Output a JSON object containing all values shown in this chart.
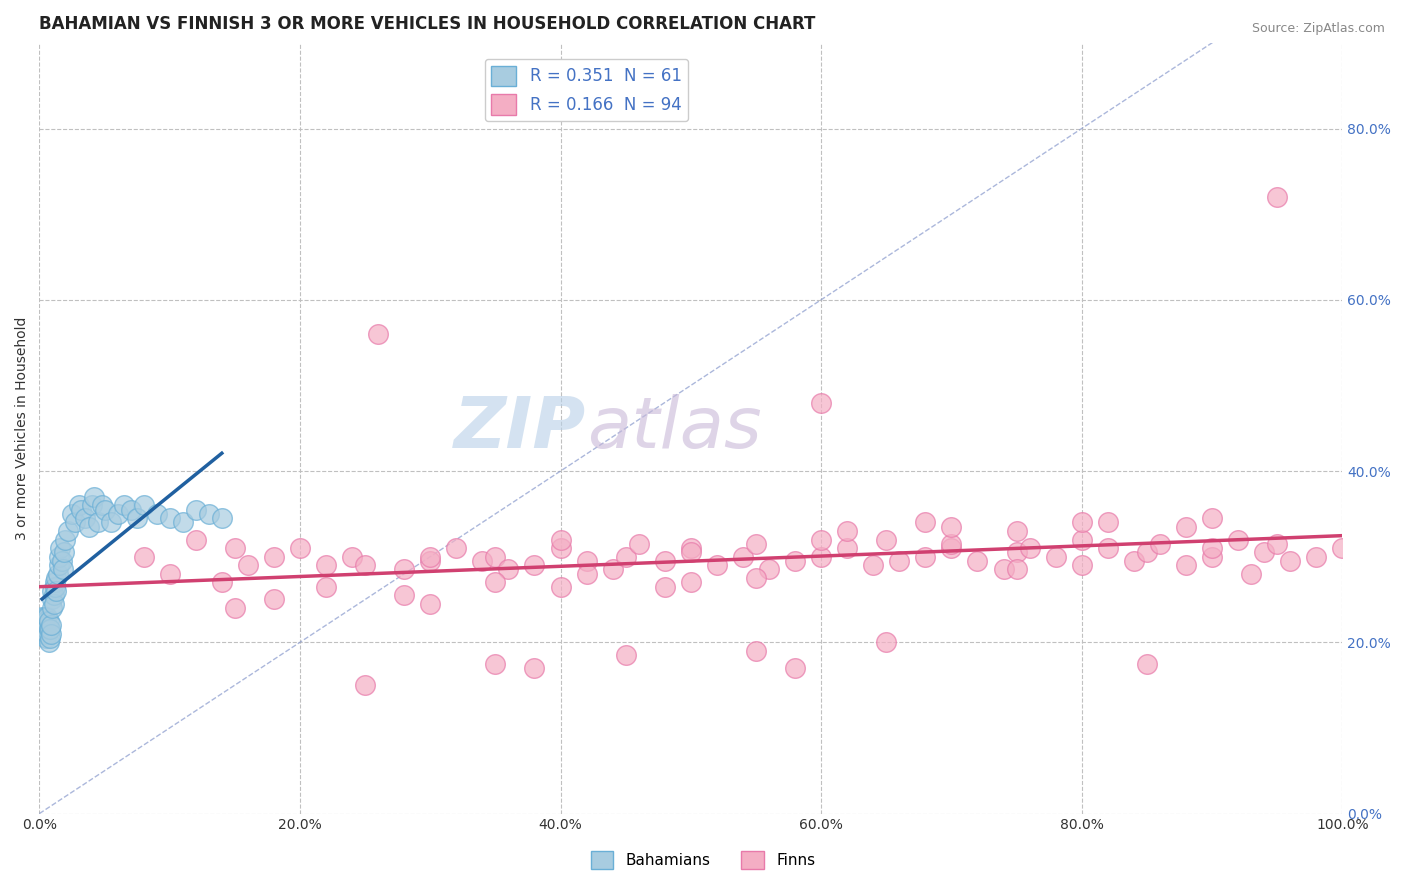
{
  "title": "BAHAMIAN VS FINNISH 3 OR MORE VEHICLES IN HOUSEHOLD CORRELATION CHART",
  "source": "Source: ZipAtlas.com",
  "ylabel": "3 or more Vehicles in Household",
  "xlabel": "",
  "xlim": [
    0.0,
    1.0
  ],
  "ylim": [
    0.0,
    0.9
  ],
  "x_ticks": [
    0.0,
    0.2,
    0.4,
    0.6,
    0.8,
    1.0
  ],
  "x_tick_labels": [
    "0.0%",
    "20.0%",
    "40.0%",
    "60.0%",
    "80.0%",
    "100.0%"
  ],
  "y_ticks": [
    0.0,
    0.2,
    0.4,
    0.6,
    0.8
  ],
  "y_tick_labels": [
    "0.0%",
    "20.0%",
    "40.0%",
    "60.0%",
    "80.0%"
  ],
  "bahamian_color": "#a8cce0",
  "bahamian_edge_color": "#6aafd6",
  "finn_color": "#f4aec4",
  "finn_edge_color": "#e87aaa",
  "R_bahamian": 0.351,
  "N_bahamian": 61,
  "R_finn": 0.166,
  "N_finn": 94,
  "trend_bahamian_color": "#2060a0",
  "trend_finn_color": "#d04070",
  "legend_text_color": "#4472c4",
  "watermark_zip_color": "#b0c8e8",
  "watermark_atlas_color": "#c8b8d8",
  "background_color": "#ffffff",
  "grid_color": "#c0c0c0",
  "title_fontsize": 12,
  "label_fontsize": 10,
  "legend_fontsize": 12,
  "bahamian_x": [
    0.002,
    0.002,
    0.003,
    0.003,
    0.004,
    0.004,
    0.004,
    0.005,
    0.005,
    0.005,
    0.006,
    0.006,
    0.006,
    0.007,
    0.007,
    0.007,
    0.008,
    0.008,
    0.009,
    0.009,
    0.01,
    0.01,
    0.01,
    0.011,
    0.011,
    0.012,
    0.012,
    0.013,
    0.013,
    0.014,
    0.015,
    0.015,
    0.016,
    0.017,
    0.018,
    0.019,
    0.02,
    0.022,
    0.025,
    0.027,
    0.03,
    0.032,
    0.035,
    0.038,
    0.04,
    0.042,
    0.045,
    0.048,
    0.05,
    0.055,
    0.06,
    0.065,
    0.07,
    0.075,
    0.08,
    0.09,
    0.1,
    0.11,
    0.12,
    0.13,
    0.14
  ],
  "bahamian_y": [
    0.22,
    0.23,
    0.21,
    0.225,
    0.215,
    0.22,
    0.23,
    0.205,
    0.215,
    0.225,
    0.21,
    0.22,
    0.23,
    0.2,
    0.215,
    0.225,
    0.205,
    0.215,
    0.21,
    0.22,
    0.25,
    0.26,
    0.24,
    0.255,
    0.245,
    0.27,
    0.265,
    0.275,
    0.26,
    0.28,
    0.29,
    0.3,
    0.31,
    0.295,
    0.285,
    0.305,
    0.32,
    0.33,
    0.35,
    0.34,
    0.36,
    0.355,
    0.345,
    0.335,
    0.36,
    0.37,
    0.34,
    0.36,
    0.355,
    0.34,
    0.35,
    0.36,
    0.355,
    0.345,
    0.36,
    0.35,
    0.345,
    0.34,
    0.355,
    0.35,
    0.345
  ],
  "finn_x": [
    0.08,
    0.1,
    0.12,
    0.14,
    0.15,
    0.16,
    0.18,
    0.2,
    0.22,
    0.24,
    0.25,
    0.26,
    0.28,
    0.3,
    0.3,
    0.32,
    0.34,
    0.35,
    0.36,
    0.38,
    0.4,
    0.4,
    0.42,
    0.44,
    0.45,
    0.46,
    0.48,
    0.5,
    0.5,
    0.52,
    0.54,
    0.55,
    0.56,
    0.58,
    0.6,
    0.6,
    0.62,
    0.64,
    0.65,
    0.66,
    0.68,
    0.7,
    0.7,
    0.72,
    0.74,
    0.75,
    0.76,
    0.78,
    0.8,
    0.8,
    0.82,
    0.84,
    0.85,
    0.86,
    0.88,
    0.9,
    0.9,
    0.92,
    0.94,
    0.95,
    0.96,
    0.98,
    1.0,
    0.18,
    0.22,
    0.28,
    0.35,
    0.42,
    0.48,
    0.55,
    0.62,
    0.68,
    0.75,
    0.82,
    0.88,
    0.95,
    0.3,
    0.4,
    0.5,
    0.6,
    0.7,
    0.8,
    0.9,
    0.25,
    0.45,
    0.65,
    0.85,
    0.35,
    0.55,
    0.75,
    0.93,
    0.15,
    0.38,
    0.58
  ],
  "finn_y": [
    0.3,
    0.28,
    0.32,
    0.27,
    0.31,
    0.29,
    0.3,
    0.31,
    0.29,
    0.3,
    0.29,
    0.56,
    0.285,
    0.295,
    0.3,
    0.31,
    0.295,
    0.3,
    0.285,
    0.29,
    0.31,
    0.32,
    0.295,
    0.285,
    0.3,
    0.315,
    0.295,
    0.31,
    0.305,
    0.29,
    0.3,
    0.315,
    0.285,
    0.295,
    0.48,
    0.3,
    0.31,
    0.29,
    0.32,
    0.295,
    0.3,
    0.31,
    0.315,
    0.295,
    0.285,
    0.305,
    0.31,
    0.3,
    0.29,
    0.32,
    0.31,
    0.295,
    0.305,
    0.315,
    0.29,
    0.3,
    0.31,
    0.32,
    0.305,
    0.315,
    0.295,
    0.3,
    0.31,
    0.25,
    0.265,
    0.255,
    0.27,
    0.28,
    0.265,
    0.275,
    0.33,
    0.34,
    0.33,
    0.34,
    0.335,
    0.72,
    0.245,
    0.265,
    0.27,
    0.32,
    0.335,
    0.34,
    0.345,
    0.15,
    0.185,
    0.2,
    0.175,
    0.175,
    0.19,
    0.285,
    0.28,
    0.24,
    0.17,
    0.17
  ]
}
